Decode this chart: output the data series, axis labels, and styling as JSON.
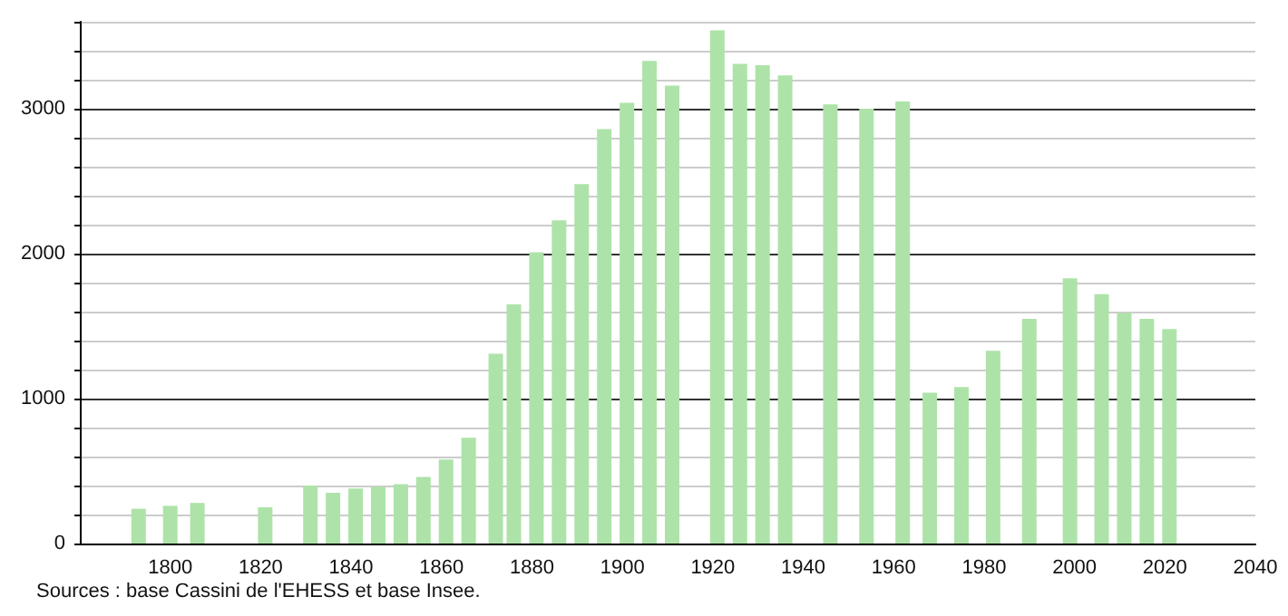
{
  "chart_data": {
    "type": "bar",
    "x": [
      1793,
      1800,
      1806,
      1821,
      1831,
      1836,
      1841,
      1846,
      1851,
      1856,
      1861,
      1866,
      1872,
      1876,
      1881,
      1886,
      1891,
      1896,
      1901,
      1906,
      1911,
      1921,
      1926,
      1931,
      1936,
      1946,
      1954,
      1962,
      1968,
      1975,
      1982,
      1990,
      1999,
      2006,
      2011,
      2016,
      2021
    ],
    "values": [
      240,
      260,
      280,
      250,
      400,
      350,
      380,
      390,
      410,
      460,
      580,
      730,
      1310,
      1650,
      2010,
      2230,
      2480,
      2860,
      3040,
      3330,
      3160,
      3540,
      3310,
      3300,
      3230,
      3030,
      3000,
      3050,
      1040,
      1080,
      1330,
      1550,
      1830,
      1720,
      1590,
      1550,
      1480
    ],
    "color": "#ade3a8",
    "xlim": [
      1780,
      2040
    ],
    "xticks": [
      1800,
      1820,
      1840,
      1860,
      1880,
      1900,
      1920,
      1940,
      1960,
      1980,
      2000,
      2020,
      2040
    ],
    "ylim": [
      0,
      3600
    ],
    "yticks": [
      0,
      {
        "value": 200,
        "label": null
      },
      {
        "value": 400,
        "label": null
      },
      {
        "value": 600,
        "label": null
      },
      {
        "value": 800,
        "label": null
      },
      1000,
      {
        "value": 1200,
        "label": null
      },
      {
        "value": 1400,
        "label": null
      },
      {
        "value": 1600,
        "label": null
      },
      {
        "value": 1800,
        "label": null
      },
      2000,
      {
        "value": 2200,
        "label": null
      },
      {
        "value": 2400,
        "label": null
      },
      {
        "value": 2600,
        "label": null
      },
      {
        "value": 2800,
        "label": null
      },
      3000,
      {
        "value": 3200,
        "label": null
      },
      {
        "value": 3400,
        "label": null
      },
      {
        "value": 3600,
        "label": null
      }
    ],
    "grid": "y",
    "annotations": [
      "Sources : base Cassini de l'EHESS et base Insee."
    ]
  }
}
